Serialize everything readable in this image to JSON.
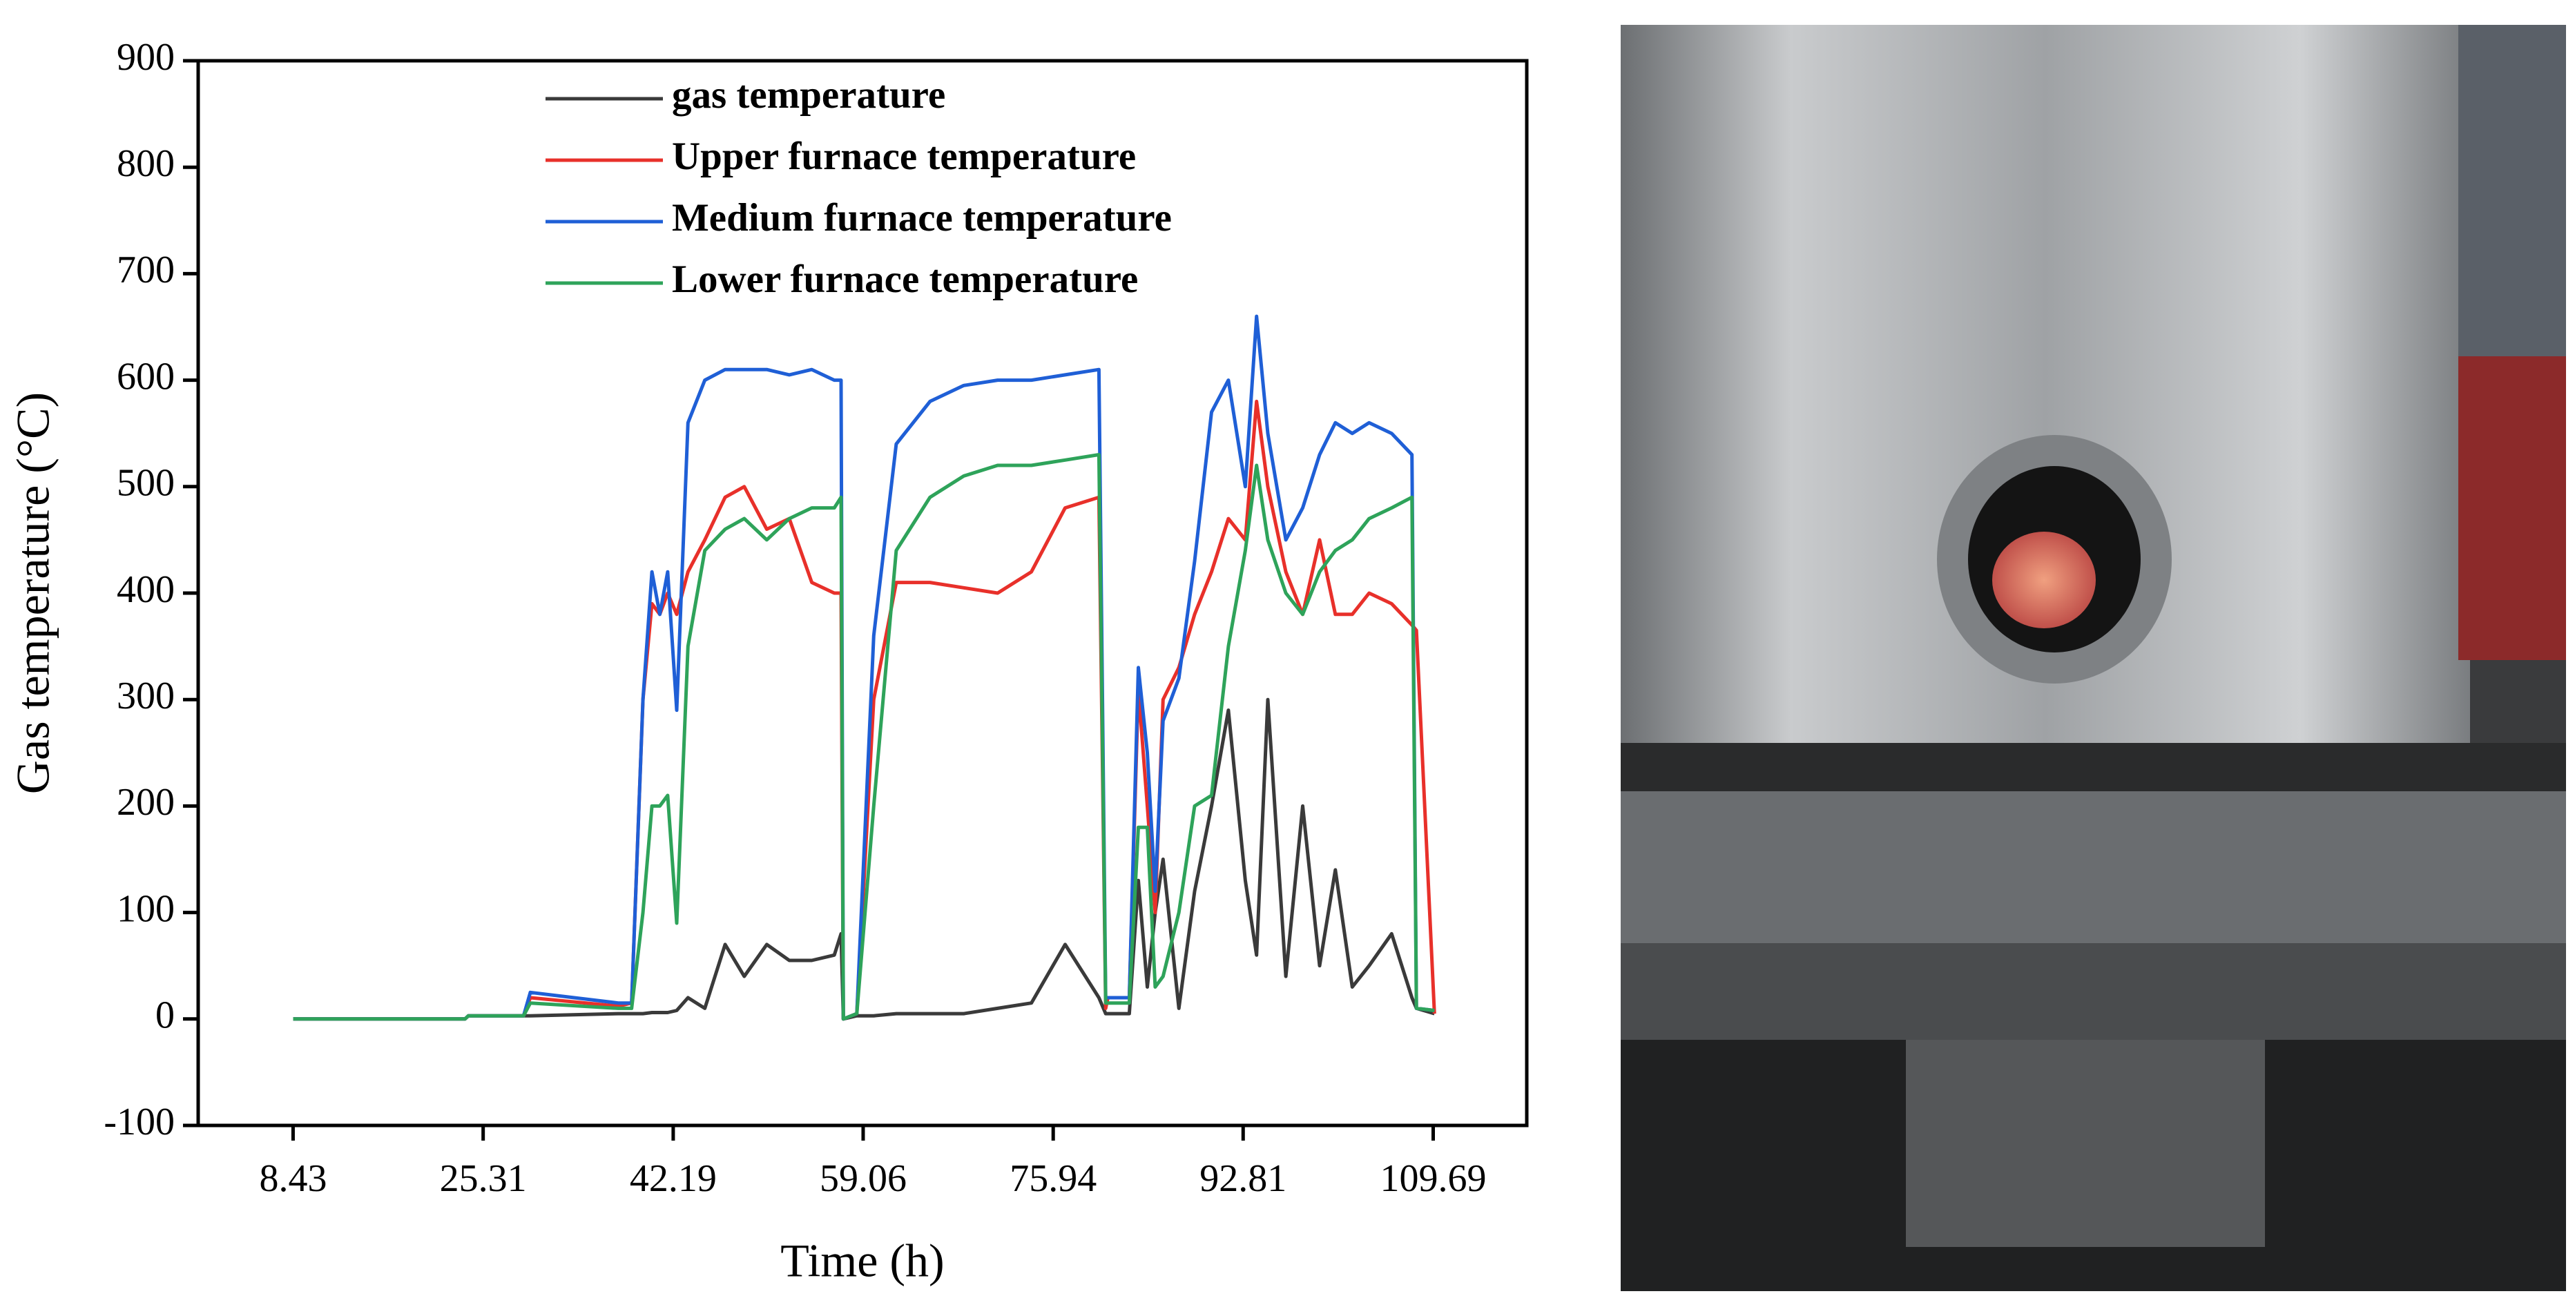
{
  "chart_data": {
    "type": "line",
    "xlabel": "Time (h)",
    "ylabel": "Gas temperature (°C)",
    "xlim": [
      0,
      118
    ],
    "xticks": [
      8.43,
      25.31,
      42.19,
      59.06,
      75.94,
      92.81,
      109.69
    ],
    "ylim": [
      -100,
      900
    ],
    "yticks": [
      -100,
      0,
      100,
      200,
      300,
      400,
      500,
      600,
      700,
      800,
      900
    ],
    "legend": "upper center",
    "x": [
      8.43,
      23.7,
      24.0,
      28.9,
      29.5,
      37.3,
      38.5,
      39.5,
      40.3,
      41.0,
      41.7,
      42.5,
      43.5,
      45.0,
      46.8,
      48.5,
      50.5,
      52.5,
      54.5,
      56.5,
      57.1,
      57.3,
      58.5,
      60.0,
      62.0,
      65.0,
      68.0,
      71.0,
      74.0,
      77.0,
      80.0,
      80.6,
      80.8,
      82.7,
      83.5,
      84.3,
      85.0,
      85.7,
      87.1,
      88.5,
      90.0,
      91.5,
      93.0,
      94.0,
      95.0,
      96.6,
      98.1,
      99.6,
      101.0,
      102.5,
      104.0,
      106.0,
      107.8,
      108.2,
      109.8
    ],
    "series": [
      {
        "name": "gas temperature",
        "color": "#3a3a3a",
        "values": [
          0,
          0,
          3,
          3,
          3,
          5,
          5,
          5,
          6,
          6,
          6,
          8,
          20,
          10,
          70,
          40,
          70,
          55,
          55,
          60,
          80,
          0,
          3,
          3,
          5,
          5,
          5,
          10,
          15,
          70,
          20,
          5,
          5,
          5,
          130,
          30,
          100,
          150,
          10,
          120,
          200,
          290,
          130,
          60,
          300,
          40,
          200,
          50,
          140,
          30,
          50,
          80,
          20,
          10,
          5
        ]
      },
      {
        "name": "Upper furnace temperature",
        "color": "#e8302a",
        "values": [
          0,
          0,
          3,
          3,
          20,
          12,
          15,
          300,
          390,
          380,
          400,
          380,
          420,
          450,
          490,
          500,
          460,
          470,
          410,
          400,
          400,
          0,
          5,
          300,
          410,
          410,
          405,
          400,
          420,
          480,
          490,
          10,
          20,
          20,
          310,
          200,
          100,
          300,
          330,
          380,
          420,
          470,
          450,
          580,
          500,
          420,
          380,
          450,
          380,
          380,
          400,
          390,
          370,
          365,
          5
        ]
      },
      {
        "name": "Medium furnace temperature",
        "color": "#1f5fd6",
        "values": [
          0,
          0,
          3,
          3,
          25,
          15,
          15,
          300,
          420,
          380,
          420,
          290,
          560,
          600,
          610,
          610,
          610,
          605,
          610,
          600,
          600,
          0,
          5,
          360,
          540,
          580,
          595,
          600,
          600,
          605,
          610,
          20,
          20,
          20,
          330,
          250,
          120,
          280,
          320,
          430,
          570,
          600,
          500,
          660,
          550,
          450,
          480,
          530,
          560,
          550,
          560,
          550,
          530,
          10,
          8
        ]
      },
      {
        "name": "Lower furnace temperature",
        "color": "#2ea35a",
        "values": [
          0,
          0,
          3,
          3,
          15,
          10,
          10,
          100,
          200,
          200,
          210,
          90,
          350,
          440,
          460,
          470,
          450,
          470,
          480,
          480,
          490,
          0,
          5,
          200,
          440,
          490,
          510,
          520,
          520,
          525,
          530,
          15,
          15,
          15,
          180,
          180,
          30,
          40,
          100,
          200,
          210,
          350,
          440,
          520,
          450,
          400,
          380,
          420,
          440,
          450,
          470,
          480,
          490,
          10,
          8
        ]
      }
    ]
  }
}
